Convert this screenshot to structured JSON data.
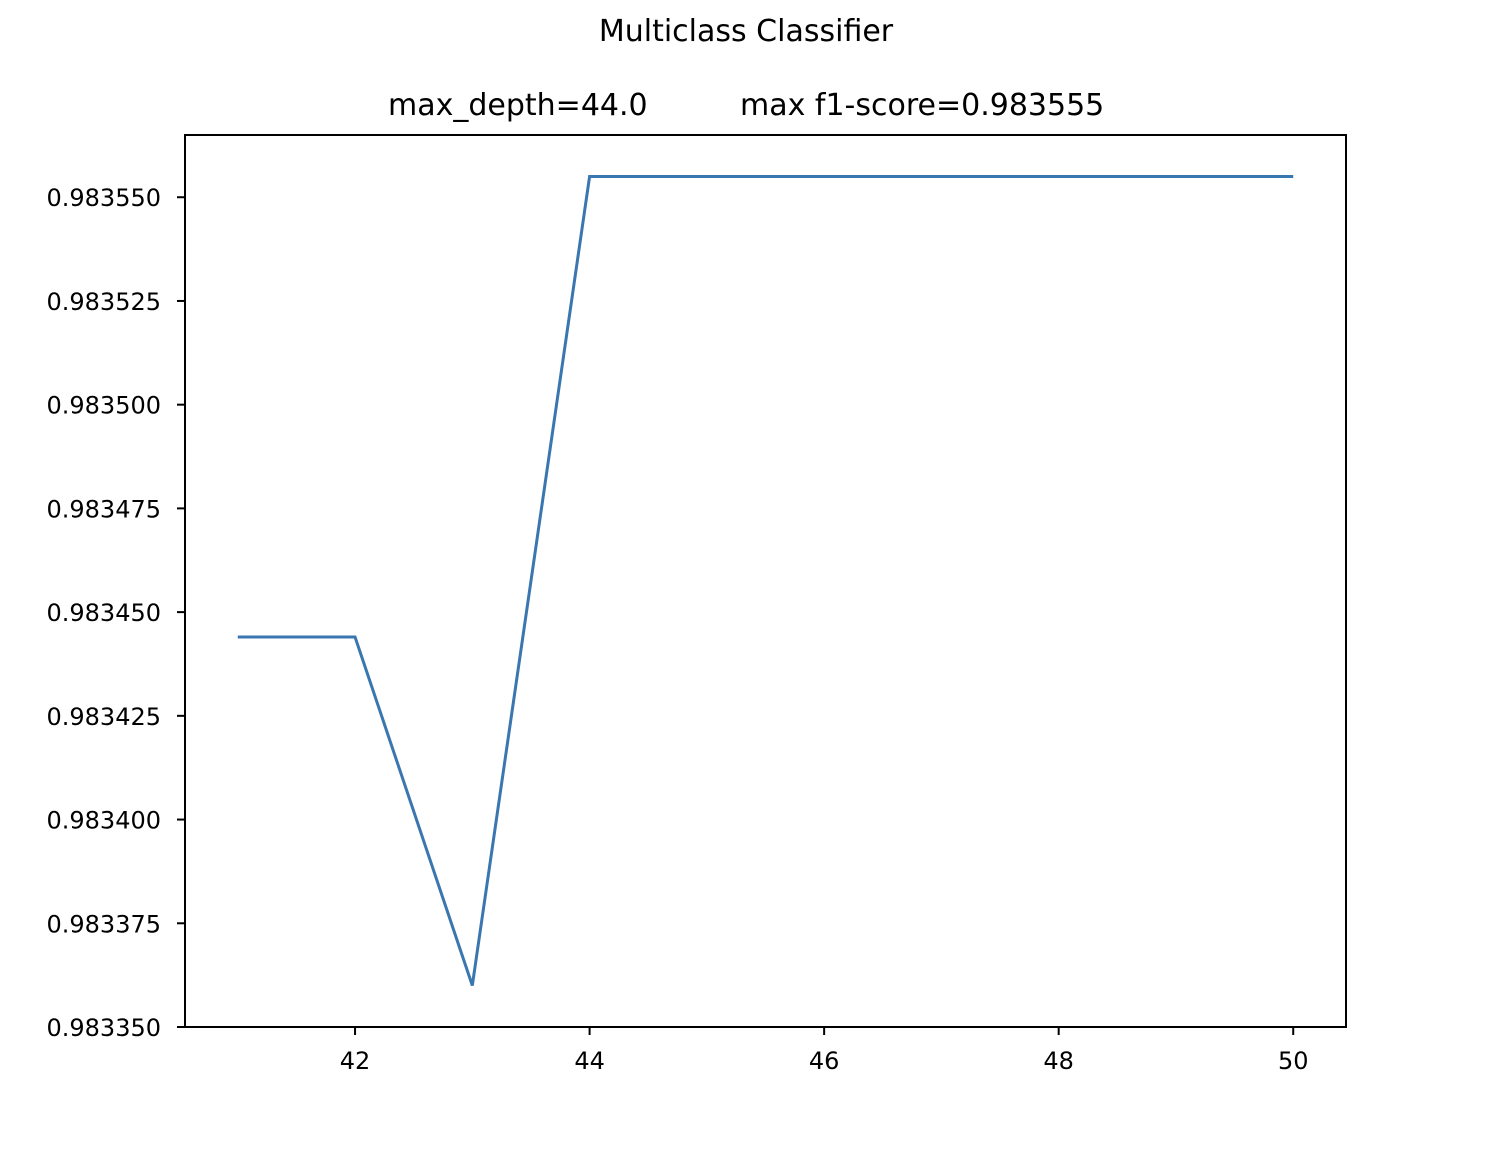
{
  "figure": {
    "suptitle": "Multiclass Classifier"
  },
  "chart_data": {
    "type": "line",
    "title_left": "max_depth=44.0",
    "title_right": "max f1-score=0.983555",
    "xlabel": "",
    "ylabel": "",
    "x": [
      41,
      42,
      43,
      44,
      45,
      46,
      47,
      48,
      49,
      50
    ],
    "series": [
      {
        "values": [
          0.983444,
          0.983444,
          0.98336,
          0.983555,
          0.983555,
          0.983555,
          0.983555,
          0.983555,
          0.983555,
          0.983555
        ],
        "color": "#3a76af"
      }
    ],
    "xlim": [
      40.55,
      50.45
    ],
    "ylim": [
      0.98335,
      0.983565
    ],
    "xticks": [
      42,
      44,
      46,
      48,
      50
    ],
    "xtick_labels": [
      "42",
      "44",
      "46",
      "48",
      "50"
    ],
    "yticks": [
      0.98335,
      0.983375,
      0.9834,
      0.983425,
      0.98345,
      0.983475,
      0.9835,
      0.983525,
      0.98355
    ],
    "ytick_labels": [
      "0.983350",
      "0.983375",
      "0.983400",
      "0.983425",
      "0.983450",
      "0.983475",
      "0.983500",
      "0.983525",
      "0.983550"
    ],
    "grid": false,
    "legend": "none"
  }
}
